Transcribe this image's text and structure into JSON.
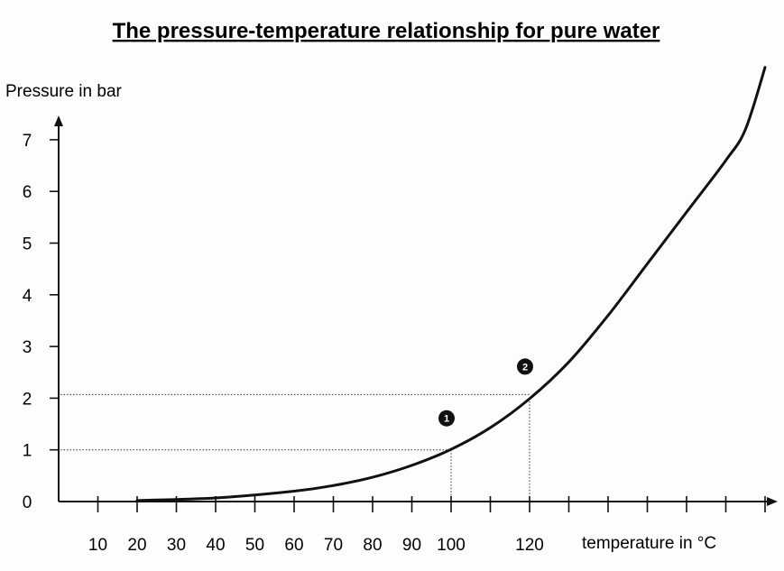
{
  "chart_data": {
    "type": "line",
    "title": "The pressure-temperature relationship for pure water",
    "ylabel": "Pressure in bar",
    "xlabel": "temperature in °C",
    "x_ticks": [
      10,
      20,
      30,
      40,
      50,
      60,
      70,
      80,
      90,
      100,
      120
    ],
    "y_ticks": [
      0,
      1,
      2,
      3,
      4,
      5,
      6,
      7
    ],
    "xlim": [
      0,
      185
    ],
    "ylim": [
      0,
      7.5
    ],
    "grid": false,
    "series": [
      {
        "x": [
          20,
          40,
          60,
          70,
          80,
          90,
          100,
          110,
          120,
          130,
          140,
          150,
          160,
          170,
          175,
          180
        ],
        "values": [
          0.02,
          0.07,
          0.2,
          0.31,
          0.47,
          0.7,
          1.01,
          1.43,
          1.99,
          2.7,
          3.6,
          4.6,
          5.6,
          6.6,
          7.2,
          8.4
        ]
      }
    ],
    "annotations": [
      {
        "label": "1",
        "x": 100,
        "y": 1.0
      },
      {
        "label": "2",
        "x": 120,
        "y": 2.0
      }
    ]
  }
}
